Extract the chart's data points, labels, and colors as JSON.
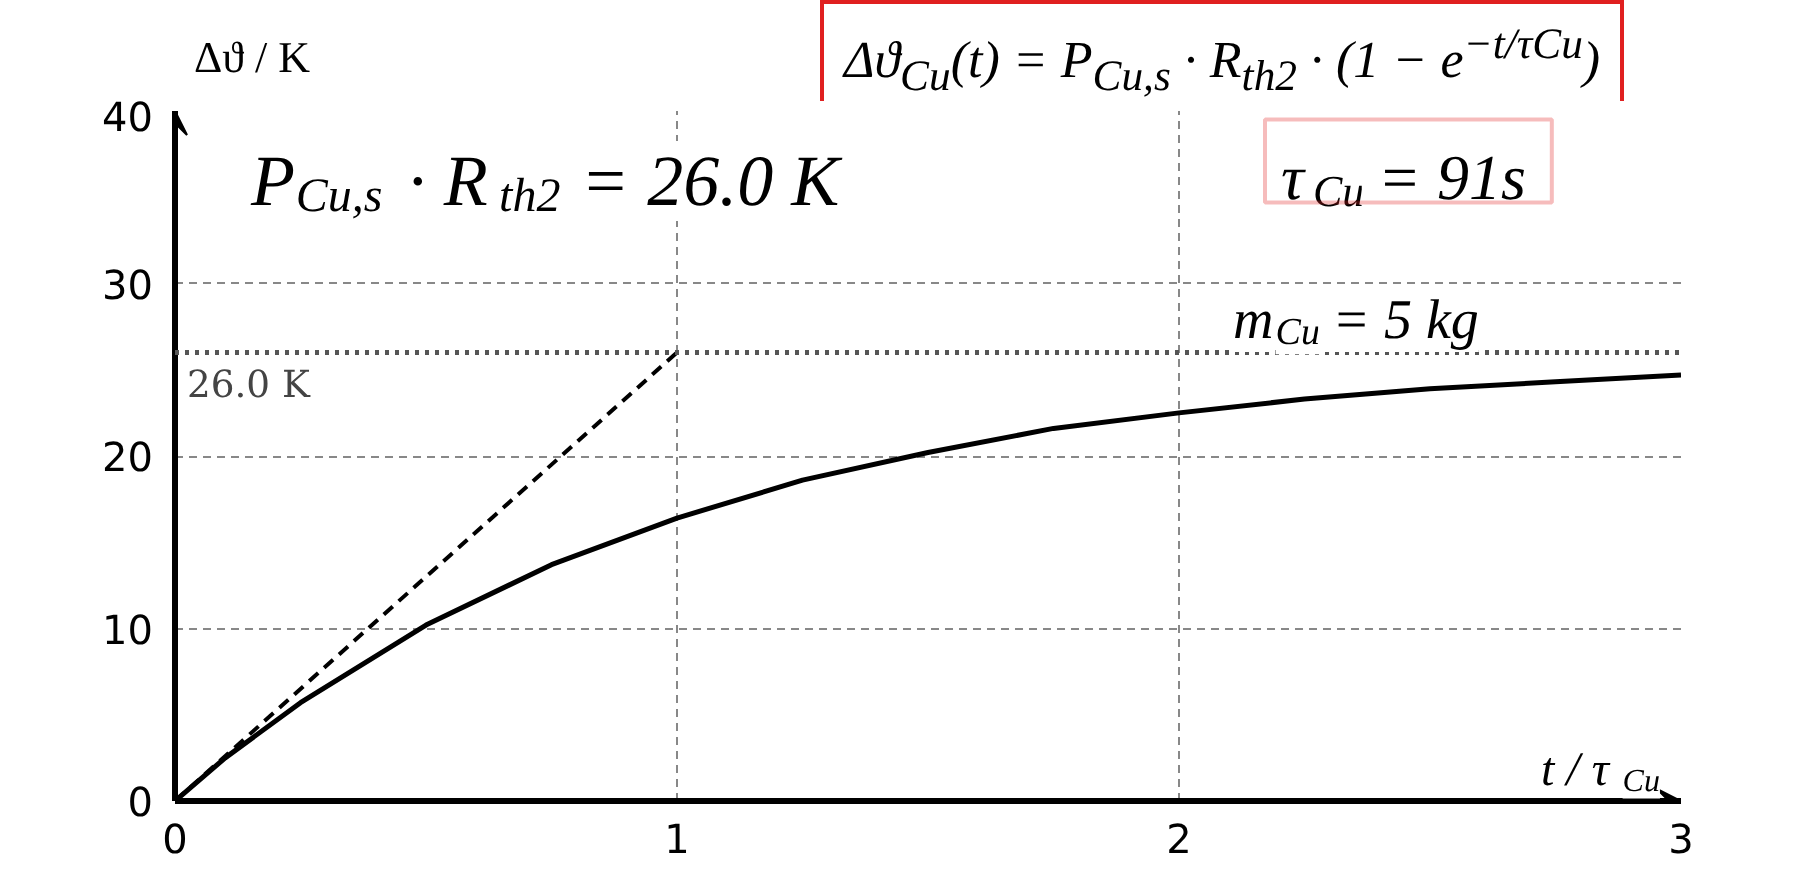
{
  "chart_data": {
    "type": "line",
    "title": "Δϑ$_{Cu}$(t) = P$_{Cu,s}$ · R$_{th2}$ · (1 − e$^{−t/τCu}$)",
    "xlabel": "t / τ$_{Cu}$",
    "ylabel": "Δϑ / K",
    "xlim": [
      0,
      3
    ],
    "ylim": [
      0,
      40
    ],
    "xticks": [
      0,
      1,
      2,
      3
    ],
    "yticks": [
      0,
      10,
      20,
      30,
      40
    ],
    "grid": true,
    "marker": "none",
    "series": [
      {
        "color": "#000000",
        "line_style": "solid",
        "x": [
          0,
          0.1,
          0.25,
          0.5,
          0.75,
          1,
          1.25,
          1.5,
          1.75,
          2,
          2.25,
          2.5,
          2.75,
          3
        ],
        "values": [
          0,
          2.5,
          5.7,
          10.2,
          13.7,
          16.4,
          18.6,
          20.2,
          21.6,
          22.5,
          23.3,
          23.9,
          24.3,
          24.7
        ]
      },
      {
        "color": "#000000",
        "line_style": "dashed",
        "x": [
          0,
          1
        ],
        "values": [
          0,
          26
        ]
      }
    ],
    "ref_lines": [
      {
        "axis": "y",
        "value": 26,
        "label": "26.0 K",
        "line_style": "dotted",
        "color": "#555555"
      }
    ],
    "annotations": [
      "P$_{Cu,s}$ · R$_{th2}$ = 26.0 K",
      "τ$_{Cu}$ = 91s",
      "m$_{Cu}$ = 5 kg"
    ]
  }
}
